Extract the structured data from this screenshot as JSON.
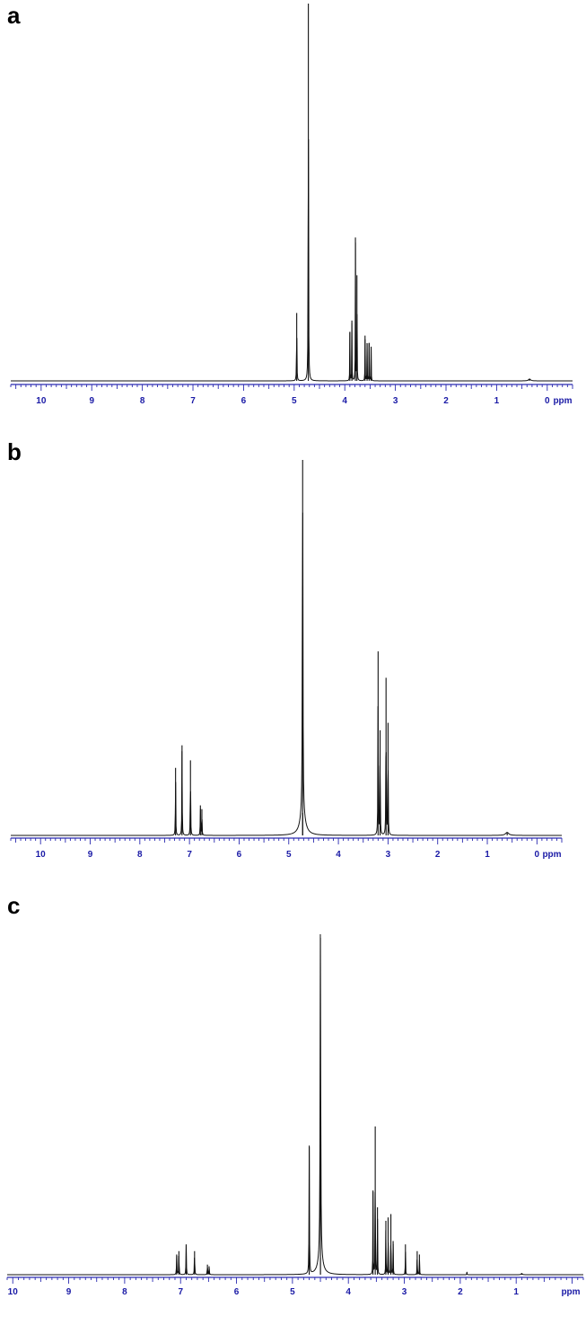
{
  "chart_data": [
    {
      "panel_label": "a",
      "type": "line",
      "xlabel": "ppm",
      "x_reversed": true,
      "xlim": [
        10.6,
        -0.5
      ],
      "tick_labels": [
        "10",
        "9",
        "8",
        "7",
        "6",
        "5",
        "4",
        "3",
        "2",
        "1",
        "0"
      ],
      "tick_values": [
        10,
        9,
        8,
        7,
        6,
        5,
        4,
        3,
        2,
        1,
        0
      ],
      "peaks": [
        {
          "ppm": 4.95,
          "height": 0.18,
          "width": 0.008
        },
        {
          "ppm": 4.72,
          "height": 1.0,
          "width": 0.008
        },
        {
          "ppm": 3.9,
          "height": 0.13,
          "width": 0.006
        },
        {
          "ppm": 3.86,
          "height": 0.16,
          "width": 0.006
        },
        {
          "ppm": 3.79,
          "height": 0.38,
          "width": 0.006
        },
        {
          "ppm": 3.76,
          "height": 0.28,
          "width": 0.006
        },
        {
          "ppm": 3.6,
          "height": 0.12,
          "width": 0.006
        },
        {
          "ppm": 3.56,
          "height": 0.1,
          "width": 0.006
        },
        {
          "ppm": 3.52,
          "height": 0.1,
          "width": 0.006
        },
        {
          "ppm": 3.48,
          "height": 0.09,
          "width": 0.006
        },
        {
          "ppm": 0.35,
          "height": 0.005,
          "width": 0.05
        }
      ]
    },
    {
      "panel_label": "b",
      "type": "line",
      "xlabel": "ppm",
      "x_reversed": true,
      "xlim": [
        10.6,
        -0.5
      ],
      "tick_labels": [
        "10",
        "9",
        "8",
        "7",
        "6",
        "5",
        "4",
        "3",
        "2",
        "1",
        "0"
      ],
      "tick_values": [
        10,
        9,
        8,
        7,
        6,
        5,
        4,
        3,
        2,
        1,
        0
      ],
      "peaks": [
        {
          "ppm": 7.28,
          "height": 0.18,
          "width": 0.008
        },
        {
          "ppm": 7.15,
          "height": 0.24,
          "width": 0.008
        },
        {
          "ppm": 6.98,
          "height": 0.2,
          "width": 0.008
        },
        {
          "ppm": 6.78,
          "height": 0.08,
          "width": 0.008
        },
        {
          "ppm": 6.75,
          "height": 0.07,
          "width": 0.008
        },
        {
          "ppm": 4.72,
          "height": 1.0,
          "width": 0.012
        },
        {
          "ppm": 4.72,
          "height": 0.06,
          "width": 0.12
        },
        {
          "ppm": 3.2,
          "height": 0.49,
          "width": 0.008
        },
        {
          "ppm": 3.16,
          "height": 0.28,
          "width": 0.008
        },
        {
          "ppm": 3.04,
          "height": 0.42,
          "width": 0.008
        },
        {
          "ppm": 3.0,
          "height": 0.3,
          "width": 0.008
        },
        {
          "ppm": 0.6,
          "height": 0.008,
          "width": 0.08
        }
      ]
    },
    {
      "panel_label": "c",
      "type": "line",
      "xlabel": "ppm",
      "x_reversed": true,
      "xlim": [
        10.1,
        -0.2
      ],
      "tick_labels": [
        "10",
        "9",
        "8",
        "7",
        "6",
        "5",
        "4",
        "3",
        "2",
        "1",
        "ppm"
      ],
      "tick_values": [
        10,
        9,
        8,
        7,
        6,
        5,
        4,
        3,
        2,
        1
      ],
      "peaks": [
        {
          "ppm": 7.07,
          "height": 0.06,
          "width": 0.008
        },
        {
          "ppm": 7.03,
          "height": 0.07,
          "width": 0.008
        },
        {
          "ppm": 6.9,
          "height": 0.09,
          "width": 0.008
        },
        {
          "ppm": 6.75,
          "height": 0.07,
          "width": 0.008
        },
        {
          "ppm": 6.52,
          "height": 0.03,
          "width": 0.008
        },
        {
          "ppm": 6.49,
          "height": 0.025,
          "width": 0.008
        },
        {
          "ppm": 4.7,
          "height": 0.38,
          "width": 0.008
        },
        {
          "ppm": 4.5,
          "height": 1.0,
          "width": 0.012
        },
        {
          "ppm": 4.5,
          "height": 0.05,
          "width": 0.1
        },
        {
          "ppm": 3.56,
          "height": 0.25,
          "width": 0.006
        },
        {
          "ppm": 3.52,
          "height": 0.44,
          "width": 0.006
        },
        {
          "ppm": 3.48,
          "height": 0.2,
          "width": 0.006
        },
        {
          "ppm": 3.33,
          "height": 0.16,
          "width": 0.006
        },
        {
          "ppm": 3.29,
          "height": 0.17,
          "width": 0.006
        },
        {
          "ppm": 3.24,
          "height": 0.18,
          "width": 0.006
        },
        {
          "ppm": 3.2,
          "height": 0.1,
          "width": 0.006
        },
        {
          "ppm": 2.98,
          "height": 0.09,
          "width": 0.006
        },
        {
          "ppm": 2.77,
          "height": 0.07,
          "width": 0.006
        },
        {
          "ppm": 2.73,
          "height": 0.06,
          "width": 0.006
        },
        {
          "ppm": 1.88,
          "height": 0.008,
          "width": 0.006
        },
        {
          "ppm": 0.9,
          "height": 0.004,
          "width": 0.02
        }
      ]
    }
  ]
}
